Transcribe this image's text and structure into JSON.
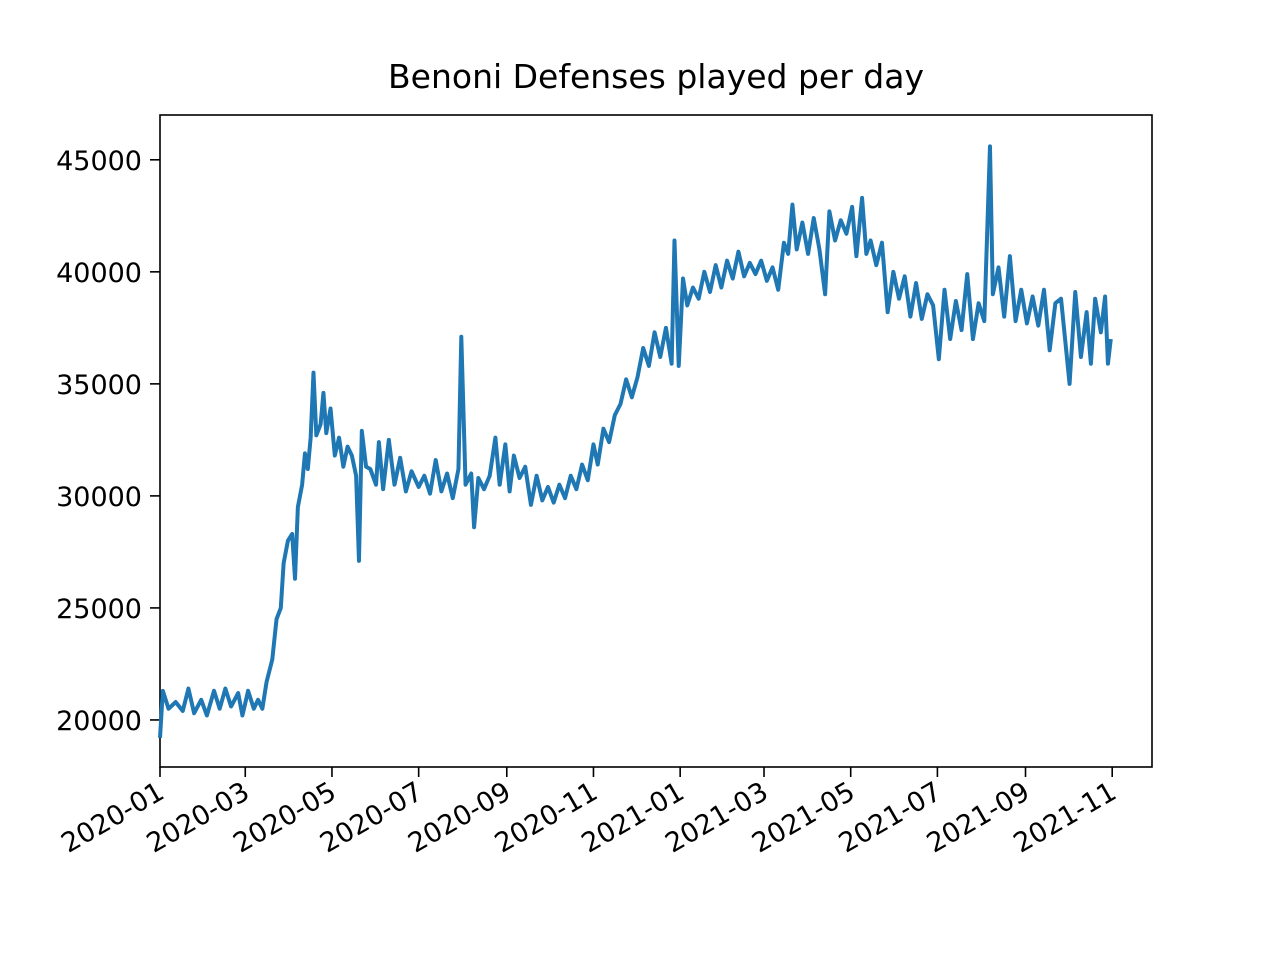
{
  "chart_data": {
    "type": "line",
    "title": "Benoni Defenses played per day",
    "color": "#1f77b4",
    "xlim": [
      "2020-01-01",
      "2021-11-29"
    ],
    "xticks": [
      "2020-01",
      "2020-03",
      "2020-05",
      "2020-07",
      "2020-09",
      "2020-11",
      "2021-01",
      "2021-03",
      "2021-05",
      "2021-07",
      "2021-09",
      "2021-11"
    ],
    "ylim": [
      17900,
      47000
    ],
    "yticks": [
      20000,
      25000,
      30000,
      35000,
      40000,
      45000
    ],
    "x": [
      "2020-01-01",
      "2020-01-03",
      "2020-01-07",
      "2020-01-12",
      "2020-01-17",
      "2020-01-21",
      "2020-01-25",
      "2020-01-30",
      "2020-02-03",
      "2020-02-08",
      "2020-02-12",
      "2020-02-16",
      "2020-02-20",
      "2020-02-25",
      "2020-02-28",
      "2020-03-03",
      "2020-03-07",
      "2020-03-10",
      "2020-03-13",
      "2020-03-16",
      "2020-03-20",
      "2020-03-23",
      "2020-03-26",
      "2020-03-28",
      "2020-03-31",
      "2020-04-03",
      "2020-04-05",
      "2020-04-07",
      "2020-04-10",
      "2020-04-12",
      "2020-04-14",
      "2020-04-16",
      "2020-04-18",
      "2020-04-20",
      "2020-04-23",
      "2020-04-25",
      "2020-04-27",
      "2020-04-30",
      "2020-05-03",
      "2020-05-06",
      "2020-05-09",
      "2020-05-12",
      "2020-05-15",
      "2020-05-18",
      "2020-05-20",
      "2020-05-22",
      "2020-05-25",
      "2020-05-28",
      "2020-06-01",
      "2020-06-03",
      "2020-06-06",
      "2020-06-10",
      "2020-06-14",
      "2020-06-18",
      "2020-06-22",
      "2020-06-26",
      "2020-07-01",
      "2020-07-05",
      "2020-07-09",
      "2020-07-13",
      "2020-07-17",
      "2020-07-21",
      "2020-07-25",
      "2020-07-29",
      "2020-07-31",
      "2020-08-03",
      "2020-08-07",
      "2020-08-09",
      "2020-08-12",
      "2020-08-16",
      "2020-08-20",
      "2020-08-24",
      "2020-08-27",
      "2020-08-31",
      "2020-09-03",
      "2020-09-06",
      "2020-09-10",
      "2020-09-14",
      "2020-09-18",
      "2020-09-22",
      "2020-09-26",
      "2020-09-30",
      "2020-10-04",
      "2020-10-08",
      "2020-10-12",
      "2020-10-16",
      "2020-10-20",
      "2020-10-24",
      "2020-10-28",
      "2020-11-01",
      "2020-11-04",
      "2020-11-08",
      "2020-11-12",
      "2020-11-16",
      "2020-11-20",
      "2020-11-24",
      "2020-11-28",
      "2020-12-02",
      "2020-12-06",
      "2020-12-10",
      "2020-12-14",
      "2020-12-18",
      "2020-12-22",
      "2020-12-26",
      "2020-12-28",
      "2020-12-31",
      "2021-01-03",
      "2021-01-06",
      "2021-01-10",
      "2021-01-14",
      "2021-01-18",
      "2021-01-22",
      "2021-01-26",
      "2021-01-30",
      "2021-02-03",
      "2021-02-07",
      "2021-02-11",
      "2021-02-15",
      "2021-02-19",
      "2021-02-23",
      "2021-02-27",
      "2021-03-03",
      "2021-03-07",
      "2021-03-11",
      "2021-03-15",
      "2021-03-18",
      "2021-03-21",
      "2021-03-24",
      "2021-03-28",
      "2021-04-01",
      "2021-04-05",
      "2021-04-09",
      "2021-04-13",
      "2021-04-16",
      "2021-04-20",
      "2021-04-24",
      "2021-04-28",
      "2021-05-02",
      "2021-05-05",
      "2021-05-09",
      "2021-05-12",
      "2021-05-15",
      "2021-05-19",
      "2021-05-23",
      "2021-05-27",
      "2021-05-31",
      "2021-06-04",
      "2021-06-08",
      "2021-06-12",
      "2021-06-16",
      "2021-06-20",
      "2021-06-24",
      "2021-06-28",
      "2021-07-02",
      "2021-07-06",
      "2021-07-10",
      "2021-07-14",
      "2021-07-18",
      "2021-07-22",
      "2021-07-26",
      "2021-07-30",
      "2021-08-03",
      "2021-08-07",
      "2021-08-09",
      "2021-08-13",
      "2021-08-17",
      "2021-08-21",
      "2021-08-25",
      "2021-08-29",
      "2021-09-02",
      "2021-09-06",
      "2021-09-10",
      "2021-09-14",
      "2021-09-18",
      "2021-09-22",
      "2021-09-26",
      "2021-10-02",
      "2021-10-06",
      "2021-10-10",
      "2021-10-14",
      "2021-10-17",
      "2021-10-20",
      "2021-10-24",
      "2021-10-27",
      "2021-10-29",
      "2021-10-31"
    ],
    "values": [
      19200,
      21300,
      20500,
      20800,
      20400,
      21400,
      20300,
      20900,
      20200,
      21300,
      20500,
      21400,
      20600,
      21200,
      20200,
      21300,
      20500,
      20900,
      20500,
      21700,
      22700,
      24500,
      25000,
      27000,
      28000,
      28300,
      26300,
      29500,
      30500,
      31900,
      31200,
      32600,
      35500,
      32700,
      33200,
      34600,
      32800,
      33900,
      31800,
      32600,
      31300,
      32200,
      31800,
      30900,
      27100,
      32900,
      31300,
      31200,
      30500,
      32400,
      30300,
      32500,
      30500,
      31700,
      30200,
      31100,
      30400,
      30900,
      30100,
      31600,
      30200,
      31000,
      29900,
      31200,
      37100,
      30500,
      31000,
      28600,
      30800,
      30300,
      30900,
      32600,
      30500,
      32300,
      30200,
      31800,
      30800,
      31300,
      29600,
      30900,
      29800,
      30400,
      29700,
      30500,
      29900,
      30900,
      30300,
      31400,
      30700,
      32300,
      31400,
      33000,
      32400,
      33600,
      34100,
      35200,
      34400,
      35300,
      36600,
      35800,
      37300,
      36200,
      37500,
      35900,
      41400,
      35800,
      39700,
      38500,
      39300,
      38800,
      40000,
      39100,
      40300,
      39300,
      40500,
      39700,
      40900,
      39800,
      40400,
      39900,
      40500,
      39600,
      40200,
      39200,
      41300,
      40800,
      43000,
      41000,
      42200,
      40800,
      42400,
      41000,
      39000,
      42700,
      41400,
      42300,
      41700,
      42900,
      40700,
      43300,
      40800,
      41400,
      40300,
      41300,
      38200,
      40000,
      38800,
      39800,
      38000,
      39500,
      37900,
      39000,
      38500,
      36100,
      39200,
      37000,
      38700,
      37400,
      39900,
      37000,
      38600,
      37800,
      45600,
      39000,
      40200,
      38000,
      40700,
      37800,
      39200,
      37700,
      38900,
      37600,
      39200,
      36500,
      38600,
      38800,
      35000,
      39100,
      36200,
      38200,
      35900,
      38800,
      37300,
      38900,
      35900,
      37000
    ]
  }
}
